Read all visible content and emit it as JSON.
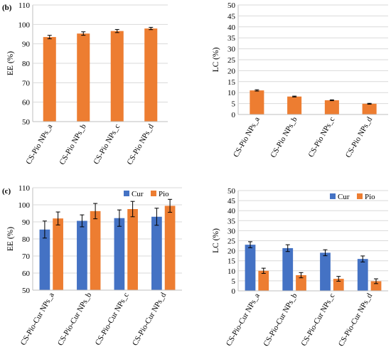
{
  "chart_data": [
    {
      "panel": "(b)",
      "type": "bar",
      "ylabel": "EE (%)",
      "ylim": [
        50,
        110
      ],
      "yticks": [
        50,
        60,
        70,
        80,
        90,
        100,
        110
      ],
      "grid": true,
      "categories": [
        "CS-Pio NPs_a",
        "CS-Pio NPs_b",
        "CS-Pio NPs_c",
        "CS-Pio NPs_d"
      ],
      "series": [
        {
          "values": [
            93.5,
            95.3,
            96.6,
            97.9
          ],
          "errors": [
            0.9,
            0.9,
            0.8,
            0.6
          ],
          "color": "#ED7D31"
        }
      ]
    },
    {
      "panel": "",
      "type": "bar",
      "ylabel": "LC (%)",
      "ylim": [
        0,
        50
      ],
      "yticks": [
        0,
        5,
        10,
        15,
        20,
        25,
        30,
        35,
        40,
        45,
        50
      ],
      "grid": true,
      "categories": [
        "CS-Pio NPs_a",
        "CS-Pio NPs_b",
        "CS-Pio NPs_c",
        "CS-Pio NPs_d"
      ],
      "series": [
        {
          "values": [
            11.0,
            8.2,
            6.5,
            4.9
          ],
          "errors": [
            0.3,
            0.2,
            0.2,
            0.2
          ],
          "color": "#ED7D31"
        }
      ]
    },
    {
      "panel": "(c)",
      "type": "bar",
      "ylabel": "EE (%)",
      "ylim": [
        50,
        110
      ],
      "yticks": [
        50,
        60,
        70,
        80,
        90,
        100,
        110
      ],
      "grid": true,
      "legend": "top-right",
      "categories": [
        "CS-Pio-Cur NPs_a",
        "CS-Pio-Cur NPs_b",
        "CS-Pio-Cur NPs_c",
        "CS-Pio-Cur NPs_d"
      ],
      "series": [
        {
          "name": "Cur",
          "values": [
            85.5,
            90.6,
            92.2,
            93.0
          ],
          "errors": [
            5.0,
            3.5,
            4.8,
            5.0
          ],
          "color": "#4472C4"
        },
        {
          "name": "Pio",
          "values": [
            92.0,
            96.3,
            97.5,
            99.4
          ],
          "errors": [
            3.8,
            4.5,
            4.5,
            3.8
          ],
          "color": "#ED7D31"
        }
      ]
    },
    {
      "panel": "",
      "type": "bar",
      "ylabel": "LC (%)",
      "ylim": [
        0,
        50
      ],
      "yticks": [
        0,
        5,
        10,
        15,
        20,
        25,
        30,
        35,
        40,
        45,
        50
      ],
      "grid": true,
      "legend": "top-right",
      "categories": [
        "CS-Pio-Cur NPs_a",
        "CS-Pio-Cur NPs_b",
        "CS-Pio-Cur NPs_c",
        "CS-Pio-Cur NPs_d"
      ],
      "series": [
        {
          "name": "Cur",
          "values": [
            23.0,
            21.3,
            19.0,
            15.9
          ],
          "errors": [
            1.5,
            1.7,
            1.5,
            1.5
          ],
          "color": "#4472C4"
        },
        {
          "name": "Pio",
          "values": [
            10.0,
            7.8,
            6.0,
            4.8
          ],
          "errors": [
            1.3,
            1.3,
            1.2,
            1.2
          ],
          "color": "#ED7D31"
        }
      ]
    }
  ]
}
